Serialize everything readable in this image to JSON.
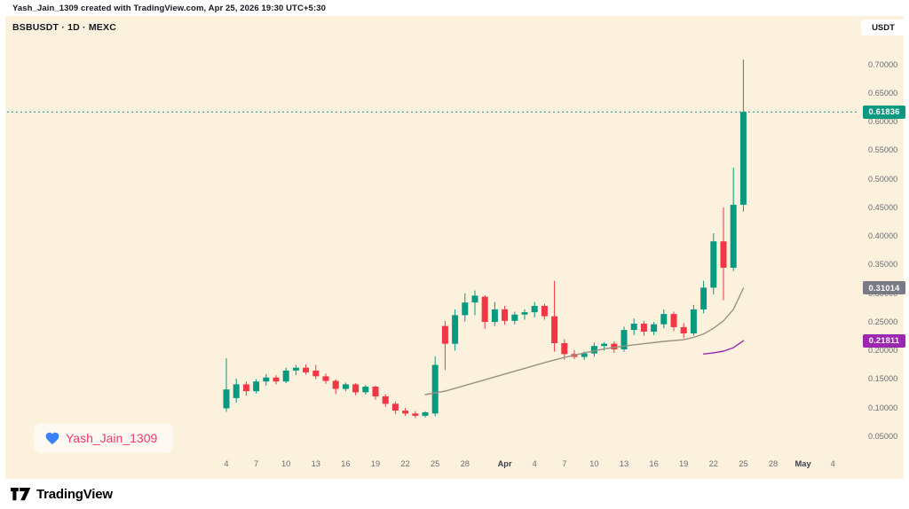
{
  "header": {
    "attribution": "Yash_Jain_1309 created with TradingView.com, Apr 25, 2026 19:30 UTC+5:30"
  },
  "toolbar": {
    "symbol_line": "BSBUSDT · 1D · MEXC",
    "currency_label": "USDT"
  },
  "watermark": {
    "name": "Yash_Jain_1309",
    "heart_color": "#3b82f6"
  },
  "footer": {
    "brand": "TradingView"
  },
  "colors": {
    "background": "#fbf1dd",
    "up": "#089981",
    "down": "#f23645",
    "axis_text": "#6b6e76",
    "last_price_line": "#089981"
  },
  "chart_data": {
    "type": "candlestick",
    "symbol": "BSBUSDT",
    "interval": "1D",
    "exchange": "MEXC",
    "last_price": 0.61836,
    "price_axis": {
      "tick_labels": [
        "0.70000",
        "0.65000",
        "0.60000",
        "0.55000",
        "0.50000",
        "0.45000",
        "0.40000",
        "0.35000",
        "0.30000",
        "0.25000",
        "0.20000",
        "0.15000",
        "0.10000",
        "0.05000"
      ],
      "visible_range": [
        0.03,
        0.75
      ]
    },
    "time_axis": {
      "range": "Mar 4 - May 4 (daily)",
      "tick_labels": [
        {
          "text": "4",
          "day": 0,
          "major": false
        },
        {
          "text": "7",
          "day": 3,
          "major": false
        },
        {
          "text": "10",
          "day": 6,
          "major": false
        },
        {
          "text": "13",
          "day": 9,
          "major": false
        },
        {
          "text": "16",
          "day": 12,
          "major": false
        },
        {
          "text": "19",
          "day": 15,
          "major": false
        },
        {
          "text": "22",
          "day": 18,
          "major": false
        },
        {
          "text": "25",
          "day": 21,
          "major": false
        },
        {
          "text": "28",
          "day": 24,
          "major": false
        },
        {
          "text": "Apr",
          "day": 28,
          "major": true
        },
        {
          "text": "4",
          "day": 31,
          "major": false
        },
        {
          "text": "7",
          "day": 34,
          "major": false
        },
        {
          "text": "10",
          "day": 37,
          "major": false
        },
        {
          "text": "13",
          "day": 40,
          "major": false
        },
        {
          "text": "16",
          "day": 43,
          "major": false
        },
        {
          "text": "19",
          "day": 46,
          "major": false
        },
        {
          "text": "22",
          "day": 49,
          "major": false
        },
        {
          "text": "25",
          "day": 52,
          "major": false
        },
        {
          "text": "28",
          "day": 55,
          "major": false
        },
        {
          "text": "May",
          "day": 58,
          "major": true
        },
        {
          "text": "4",
          "day": 61,
          "major": false
        }
      ]
    },
    "candles": [
      {
        "t": "Mar 4",
        "o": 0.1,
        "h": 0.188,
        "l": 0.094,
        "c": 0.133
      },
      {
        "t": "Mar 5",
        "o": 0.118,
        "h": 0.152,
        "l": 0.11,
        "c": 0.142
      },
      {
        "t": "Mar 6",
        "o": 0.142,
        "h": 0.147,
        "l": 0.122,
        "c": 0.13
      },
      {
        "t": "Mar 7",
        "o": 0.13,
        "h": 0.151,
        "l": 0.126,
        "c": 0.147
      },
      {
        "t": "Mar 8",
        "o": 0.147,
        "h": 0.16,
        "l": 0.14,
        "c": 0.154
      },
      {
        "t": "Mar 9",
        "o": 0.154,
        "h": 0.158,
        "l": 0.142,
        "c": 0.147
      },
      {
        "t": "Mar 10",
        "o": 0.147,
        "h": 0.171,
        "l": 0.144,
        "c": 0.166
      },
      {
        "t": "Mar 11",
        "o": 0.166,
        "h": 0.176,
        "l": 0.158,
        "c": 0.171
      },
      {
        "t": "Mar 12",
        "o": 0.171,
        "h": 0.177,
        "l": 0.159,
        "c": 0.163
      },
      {
        "t": "Mar 13",
        "o": 0.166,
        "h": 0.176,
        "l": 0.151,
        "c": 0.156
      },
      {
        "t": "Mar 14",
        "o": 0.156,
        "h": 0.161,
        "l": 0.143,
        "c": 0.148
      },
      {
        "t": "Mar 15",
        "o": 0.148,
        "h": 0.151,
        "l": 0.125,
        "c": 0.134
      },
      {
        "t": "Mar 16",
        "o": 0.134,
        "h": 0.145,
        "l": 0.13,
        "c": 0.142
      },
      {
        "t": "Mar 17",
        "o": 0.142,
        "h": 0.144,
        "l": 0.123,
        "c": 0.128
      },
      {
        "t": "Mar 18",
        "o": 0.128,
        "h": 0.141,
        "l": 0.124,
        "c": 0.138
      },
      {
        "t": "Mar 19",
        "o": 0.138,
        "h": 0.14,
        "l": 0.115,
        "c": 0.121
      },
      {
        "t": "Mar 20",
        "o": 0.121,
        "h": 0.125,
        "l": 0.103,
        "c": 0.108
      },
      {
        "t": "Mar 21",
        "o": 0.108,
        "h": 0.112,
        "l": 0.09,
        "c": 0.096
      },
      {
        "t": "Mar 22",
        "o": 0.096,
        "h": 0.101,
        "l": 0.087,
        "c": 0.091
      },
      {
        "t": "Mar 23",
        "o": 0.091,
        "h": 0.095,
        "l": 0.083,
        "c": 0.087
      },
      {
        "t": "Mar 24",
        "o": 0.087,
        "h": 0.095,
        "l": 0.084,
        "c": 0.093
      },
      {
        "t": "Mar 25",
        "o": 0.091,
        "h": 0.191,
        "l": 0.086,
        "c": 0.176
      },
      {
        "t": "Mar 26",
        "o": 0.244,
        "h": 0.253,
        "l": 0.167,
        "c": 0.213
      },
      {
        "t": "Mar 27",
        "o": 0.213,
        "h": 0.273,
        "l": 0.201,
        "c": 0.263
      },
      {
        "t": "Mar 28",
        "o": 0.263,
        "h": 0.301,
        "l": 0.252,
        "c": 0.285
      },
      {
        "t": "Mar 29",
        "o": 0.285,
        "h": 0.306,
        "l": 0.263,
        "c": 0.297
      },
      {
        "t": "Mar 30",
        "o": 0.295,
        "h": 0.298,
        "l": 0.239,
        "c": 0.251
      },
      {
        "t": "Mar 31",
        "o": 0.251,
        "h": 0.286,
        "l": 0.244,
        "c": 0.273
      },
      {
        "t": "Apr 1",
        "o": 0.273,
        "h": 0.279,
        "l": 0.246,
        "c": 0.253
      },
      {
        "t": "Apr 2",
        "o": 0.253,
        "h": 0.269,
        "l": 0.247,
        "c": 0.264
      },
      {
        "t": "Apr 3",
        "o": 0.264,
        "h": 0.273,
        "l": 0.255,
        "c": 0.268
      },
      {
        "t": "Apr 4",
        "o": 0.268,
        "h": 0.286,
        "l": 0.259,
        "c": 0.279
      },
      {
        "t": "Apr 5",
        "o": 0.279,
        "h": 0.283,
        "l": 0.255,
        "c": 0.261
      },
      {
        "t": "Apr 6",
        "o": 0.261,
        "h": 0.323,
        "l": 0.199,
        "c": 0.214
      },
      {
        "t": "Apr 7",
        "o": 0.214,
        "h": 0.221,
        "l": 0.185,
        "c": 0.195
      },
      {
        "t": "Apr 8",
        "o": 0.195,
        "h": 0.202,
        "l": 0.186,
        "c": 0.19
      },
      {
        "t": "Apr 9",
        "o": 0.19,
        "h": 0.199,
        "l": 0.185,
        "c": 0.196
      },
      {
        "t": "Apr 10",
        "o": 0.196,
        "h": 0.215,
        "l": 0.19,
        "c": 0.209
      },
      {
        "t": "Apr 11",
        "o": 0.209,
        "h": 0.216,
        "l": 0.201,
        "c": 0.213
      },
      {
        "t": "Apr 12",
        "o": 0.213,
        "h": 0.217,
        "l": 0.197,
        "c": 0.203
      },
      {
        "t": "Apr 13",
        "o": 0.203,
        "h": 0.243,
        "l": 0.199,
        "c": 0.237
      },
      {
        "t": "Apr 14",
        "o": 0.237,
        "h": 0.257,
        "l": 0.228,
        "c": 0.248
      },
      {
        "t": "Apr 15",
        "o": 0.248,
        "h": 0.253,
        "l": 0.227,
        "c": 0.234
      },
      {
        "t": "Apr 16",
        "o": 0.234,
        "h": 0.251,
        "l": 0.228,
        "c": 0.247
      },
      {
        "t": "Apr 17",
        "o": 0.247,
        "h": 0.273,
        "l": 0.24,
        "c": 0.265
      },
      {
        "t": "Apr 18",
        "o": 0.265,
        "h": 0.269,
        "l": 0.235,
        "c": 0.242
      },
      {
        "t": "Apr 19",
        "o": 0.242,
        "h": 0.249,
        "l": 0.223,
        "c": 0.231
      },
      {
        "t": "Apr 20",
        "o": 0.231,
        "h": 0.281,
        "l": 0.227,
        "c": 0.273
      },
      {
        "t": "Apr 21",
        "o": 0.273,
        "h": 0.323,
        "l": 0.266,
        "c": 0.311
      },
      {
        "t": "Apr 22",
        "o": 0.311,
        "h": 0.406,
        "l": 0.299,
        "c": 0.392
      },
      {
        "t": "Apr 23",
        "o": 0.392,
        "h": 0.451,
        "l": 0.289,
        "c": 0.346
      },
      {
        "t": "Apr 24",
        "o": 0.346,
        "h": 0.521,
        "l": 0.34,
        "c": 0.456
      },
      {
        "t": "Apr 25",
        "o": 0.456,
        "h": 0.71,
        "l": 0.444,
        "c": 0.61836
      }
    ],
    "overlays": [
      {
        "name": "ma-long",
        "color": "#9a9183",
        "points": [
          [
            20,
            0.124
          ],
          [
            22,
            0.13
          ],
          [
            24,
            0.14
          ],
          [
            26,
            0.15
          ],
          [
            28,
            0.16
          ],
          [
            30,
            0.17
          ],
          [
            32,
            0.18
          ],
          [
            34,
            0.189
          ],
          [
            36,
            0.197
          ],
          [
            38,
            0.204
          ],
          [
            40,
            0.209
          ],
          [
            42,
            0.213
          ],
          [
            44,
            0.217
          ],
          [
            46,
            0.22
          ],
          [
            47,
            0.224
          ],
          [
            48,
            0.23
          ],
          [
            49,
            0.24
          ],
          [
            50,
            0.253
          ],
          [
            51,
            0.273
          ],
          [
            52,
            0.31014
          ]
        ]
      },
      {
        "name": "ma-short",
        "color": "#9c27b0",
        "points": [
          [
            48,
            0.195
          ],
          [
            49,
            0.197
          ],
          [
            50,
            0.2
          ],
          [
            51,
            0.206
          ],
          [
            52,
            0.21811
          ]
        ]
      }
    ],
    "badges": [
      {
        "name": "last-price-badge",
        "label": "0.61836",
        "value": 0.61836,
        "color": "#089981"
      },
      {
        "name": "ma-long-badge",
        "label": "0.31014",
        "value": 0.31014,
        "color": "#787b86"
      },
      {
        "name": "ma-short-badge",
        "label": "0.21811",
        "value": 0.21811,
        "color": "#9c27b0"
      }
    ]
  }
}
